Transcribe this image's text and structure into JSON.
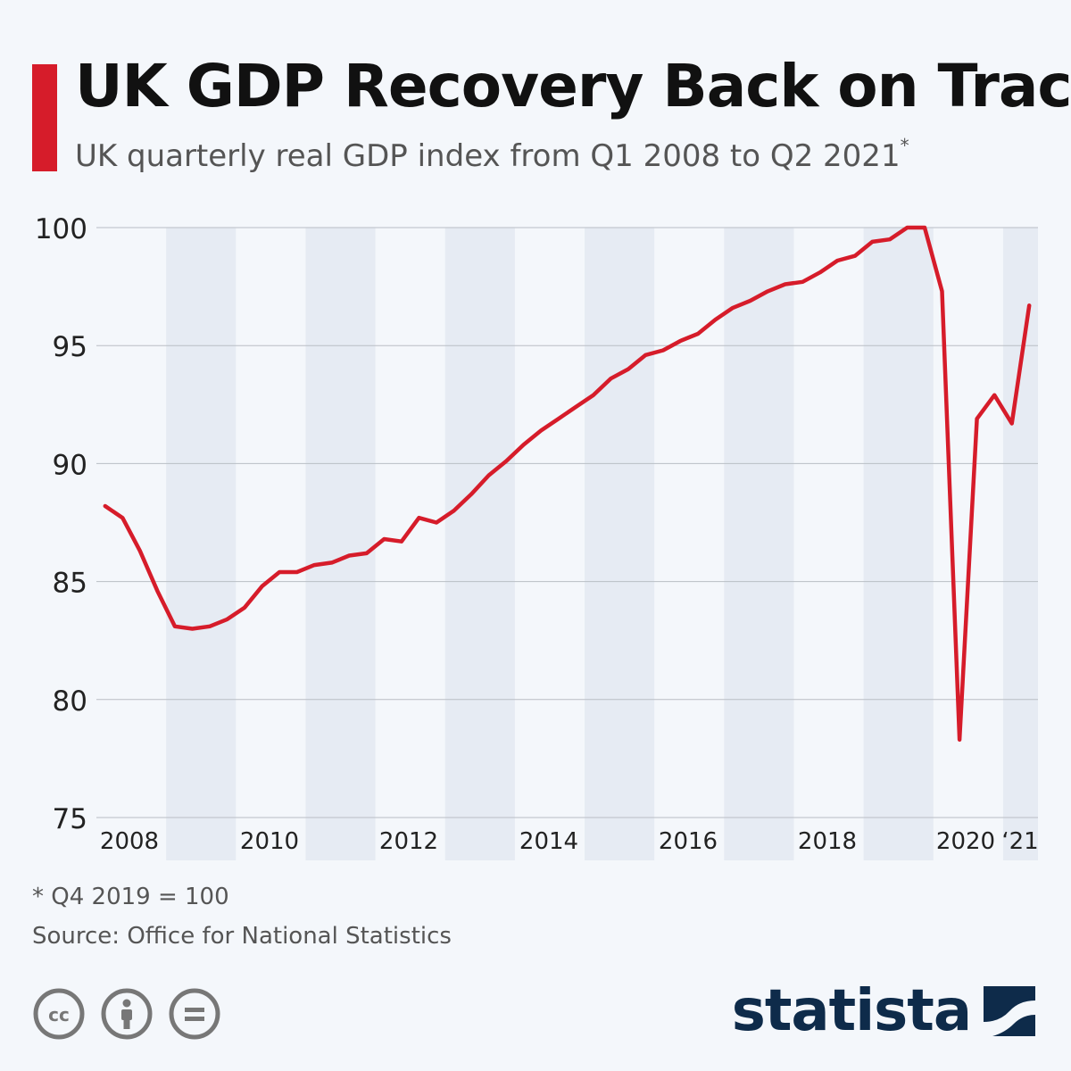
{
  "header": {
    "title": "UK GDP Recovery Back on Track",
    "subtitle": "UK quarterly real GDP index from Q1 2008 to Q2 2021",
    "subtitle_marker": "*"
  },
  "footer": {
    "note": "* Q4 2019 = 100",
    "source": "Source: Office for National Statistics",
    "brand": "statista",
    "license_icons": [
      "cc-icon",
      "attribution-icon",
      "no-derivatives-icon"
    ]
  },
  "colors": {
    "line": "#d61c2a",
    "accent": "#d61c2a",
    "band": "#e6ebf3",
    "grid": "#b9bec4",
    "brand": "#0e2b4a"
  },
  "chart_data": {
    "type": "line",
    "title": "UK GDP Recovery Back on Track",
    "xlabel": "",
    "ylabel": "",
    "ylim": [
      75,
      100
    ],
    "yticks": [
      "75",
      "80",
      "85",
      "90",
      "95",
      "100"
    ],
    "xtick_labels": [
      "2008",
      "2010",
      "2012",
      "2014",
      "2016",
      "2018",
      "2020",
      "‘21"
    ],
    "grid": true,
    "series": [
      {
        "name": "UK quarterly real GDP index (Q4 2019 = 100)",
        "start": "Q1 2008",
        "end": "Q2 2021",
        "values": [
          88.2,
          87.7,
          86.3,
          84.6,
          83.1,
          83.0,
          83.1,
          83.4,
          83.9,
          84.8,
          85.4,
          85.4,
          85.7,
          85.8,
          86.1,
          86.2,
          86.8,
          86.7,
          87.7,
          87.5,
          88.0,
          88.7,
          89.5,
          90.1,
          90.8,
          91.4,
          91.9,
          92.4,
          92.9,
          93.6,
          94.0,
          94.6,
          94.8,
          95.2,
          95.5,
          96.1,
          96.6,
          96.9,
          97.3,
          97.6,
          97.7,
          98.1,
          98.6,
          98.8,
          99.4,
          99.5,
          100.0,
          100.0,
          97.3,
          78.3,
          91.9,
          92.9,
          91.7,
          96.7
        ]
      }
    ]
  }
}
